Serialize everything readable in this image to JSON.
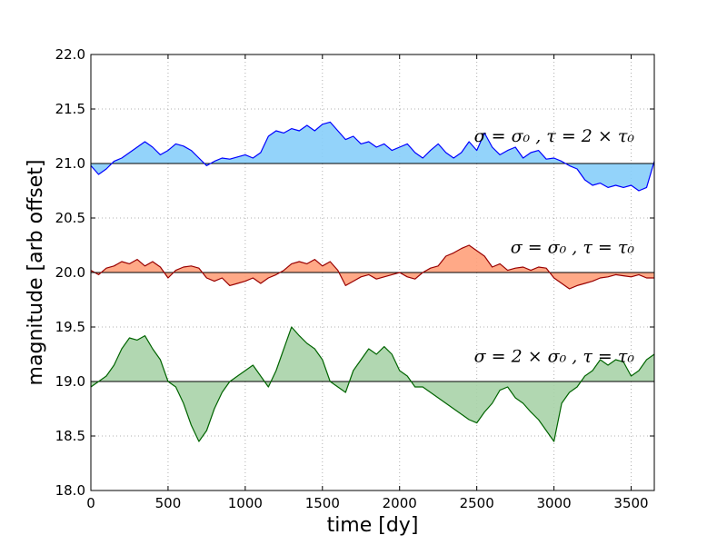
{
  "chart_data": {
    "type": "line",
    "xlabel": "time [dy]",
    "ylabel": "magnitude [arb offset]",
    "xlim": [
      0,
      3650
    ],
    "ylim": [
      18.0,
      22.0
    ],
    "xticks": [
      0,
      500,
      1000,
      1500,
      2000,
      2500,
      3000,
      3500
    ],
    "yticks": [
      18.0,
      18.5,
      19.0,
      19.5,
      20.0,
      20.5,
      21.0,
      21.5,
      22.0
    ],
    "xtick_labels": [
      "0",
      "500",
      "1000",
      "1500",
      "2000",
      "2500",
      "3000",
      "3500"
    ],
    "ytick_labels": [
      "18.0",
      "18.5",
      "19.0",
      "19.5",
      "20.0",
      "20.5",
      "21.0",
      "21.5",
      "22.0"
    ],
    "grid": true,
    "series": [
      {
        "baseline": 21.0,
        "annotation": "σ = σ₀ ,  τ = 2 × τ₀",
        "line_color": "#0000ff",
        "fill_color": "#87cefa",
        "x": [
          0,
          50,
          100,
          150,
          200,
          250,
          300,
          350,
          400,
          450,
          500,
          550,
          600,
          650,
          700,
          750,
          800,
          850,
          900,
          950,
          1000,
          1050,
          1100,
          1150,
          1200,
          1250,
          1300,
          1350,
          1400,
          1450,
          1500,
          1550,
          1600,
          1650,
          1700,
          1750,
          1800,
          1850,
          1900,
          1950,
          2000,
          2050,
          2100,
          2150,
          2200,
          2250,
          2300,
          2350,
          2400,
          2450,
          2500,
          2550,
          2600,
          2650,
          2700,
          2750,
          2800,
          2850,
          2900,
          2950,
          3000,
          3050,
          3100,
          3150,
          3200,
          3250,
          3300,
          3350,
          3400,
          3450,
          3500,
          3550,
          3600,
          3650
        ],
        "y": [
          20.98,
          20.9,
          20.95,
          21.02,
          21.05,
          21.1,
          21.15,
          21.2,
          21.15,
          21.08,
          21.12,
          21.18,
          21.16,
          21.12,
          21.05,
          20.98,
          21.02,
          21.05,
          21.04,
          21.06,
          21.08,
          21.05,
          21.1,
          21.25,
          21.3,
          21.28,
          21.32,
          21.3,
          21.35,
          21.3,
          21.36,
          21.38,
          21.3,
          21.22,
          21.25,
          21.18,
          21.2,
          21.15,
          21.18,
          21.12,
          21.15,
          21.18,
          21.1,
          21.05,
          21.12,
          21.18,
          21.1,
          21.05,
          21.1,
          21.2,
          21.12,
          21.28,
          21.15,
          21.08,
          21.12,
          21.15,
          21.05,
          21.1,
          21.12,
          21.04,
          21.05,
          21.02,
          20.98,
          20.95,
          20.85,
          20.8,
          20.82,
          20.78,
          20.8,
          20.78,
          20.8,
          20.75,
          20.78,
          21.02
        ]
      },
      {
        "baseline": 20.0,
        "annotation": "σ = σ₀ ,  τ = τ₀",
        "line_color": "#990000",
        "fill_color": "#ffa07a",
        "x": [
          0,
          50,
          100,
          150,
          200,
          250,
          300,
          350,
          400,
          450,
          500,
          550,
          600,
          650,
          700,
          750,
          800,
          850,
          900,
          950,
          1000,
          1050,
          1100,
          1150,
          1200,
          1250,
          1300,
          1350,
          1400,
          1450,
          1500,
          1550,
          1600,
          1650,
          1700,
          1750,
          1800,
          1850,
          1900,
          1950,
          2000,
          2050,
          2100,
          2150,
          2200,
          2250,
          2300,
          2350,
          2400,
          2450,
          2500,
          2550,
          2600,
          2650,
          2700,
          2750,
          2800,
          2850,
          2900,
          2950,
          3000,
          3050,
          3100,
          3150,
          3200,
          3250,
          3300,
          3350,
          3400,
          3450,
          3500,
          3550,
          3600,
          3650
        ],
        "y": [
          20.02,
          19.98,
          20.04,
          20.06,
          20.1,
          20.08,
          20.12,
          20.06,
          20.1,
          20.05,
          19.95,
          20.02,
          20.05,
          20.06,
          20.04,
          19.95,
          19.92,
          19.95,
          19.88,
          19.9,
          19.92,
          19.95,
          19.9,
          19.95,
          19.98,
          20.02,
          20.08,
          20.1,
          20.08,
          20.12,
          20.06,
          20.1,
          20.02,
          19.88,
          19.92,
          19.96,
          19.98,
          19.94,
          19.96,
          19.98,
          20.0,
          19.96,
          19.94,
          20.0,
          20.04,
          20.06,
          20.15,
          20.18,
          20.22,
          20.25,
          20.2,
          20.15,
          20.05,
          20.08,
          20.02,
          20.04,
          20.05,
          20.02,
          20.05,
          20.04,
          19.95,
          19.9,
          19.85,
          19.88,
          19.9,
          19.92,
          19.95,
          19.96,
          19.98,
          19.97,
          19.96,
          19.98,
          19.95,
          19.95
        ]
      },
      {
        "baseline": 19.0,
        "annotation": "σ = 2 × σ₀ ,  τ = τ₀",
        "line_color": "#006400",
        "fill_color": "#a9d3a9",
        "x": [
          0,
          50,
          100,
          150,
          200,
          250,
          300,
          350,
          400,
          450,
          500,
          550,
          600,
          650,
          700,
          750,
          800,
          850,
          900,
          950,
          1000,
          1050,
          1100,
          1150,
          1200,
          1250,
          1300,
          1350,
          1400,
          1450,
          1500,
          1550,
          1600,
          1650,
          1700,
          1750,
          1800,
          1850,
          1900,
          1950,
          2000,
          2050,
          2100,
          2150,
          2200,
          2250,
          2300,
          2350,
          2400,
          2450,
          2500,
          2550,
          2600,
          2650,
          2700,
          2750,
          2800,
          2850,
          2900,
          2950,
          3000,
          3050,
          3100,
          3150,
          3200,
          3250,
          3300,
          3350,
          3400,
          3450,
          3500,
          3550,
          3600,
          3650
        ],
        "y": [
          18.95,
          19.0,
          19.05,
          19.15,
          19.3,
          19.4,
          19.38,
          19.42,
          19.3,
          19.2,
          19.0,
          18.95,
          18.8,
          18.6,
          18.45,
          18.55,
          18.75,
          18.9,
          19.0,
          19.05,
          19.1,
          19.15,
          19.05,
          18.95,
          19.1,
          19.3,
          19.5,
          19.42,
          19.35,
          19.3,
          19.2,
          19.0,
          18.95,
          18.9,
          19.1,
          19.2,
          19.3,
          19.25,
          19.32,
          19.25,
          19.1,
          19.05,
          18.95,
          18.95,
          18.9,
          18.85,
          18.8,
          18.75,
          18.7,
          18.65,
          18.62,
          18.72,
          18.8,
          18.92,
          18.95,
          18.85,
          18.8,
          18.72,
          18.65,
          18.55,
          18.45,
          18.8,
          18.9,
          18.95,
          19.05,
          19.1,
          19.2,
          19.15,
          19.2,
          19.18,
          19.05,
          19.1,
          19.2,
          19.25
        ]
      }
    ]
  }
}
